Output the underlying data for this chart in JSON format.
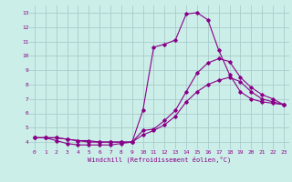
{
  "xlabel": "Windchill (Refroidissement éolien,°C)",
  "background_color": "#cceee8",
  "grid_color": "#aacccc",
  "line_color": "#880088",
  "xlim": [
    -0.5,
    23.5
  ],
  "ylim": [
    3.5,
    13.5
  ],
  "xticks": [
    0,
    1,
    2,
    3,
    4,
    5,
    6,
    7,
    8,
    9,
    10,
    11,
    12,
    13,
    14,
    15,
    16,
    17,
    18,
    19,
    20,
    21,
    22,
    23
  ],
  "yticks": [
    4,
    5,
    6,
    7,
    8,
    9,
    10,
    11,
    12,
    13
  ],
  "tick_fontsize": 4.5,
  "label_fontsize": 5.0,
  "series": [
    {
      "x": [
        0,
        1,
        2,
        3,
        4,
        5,
        6,
        7,
        8,
        9,
        10,
        11,
        12,
        13,
        14,
        15,
        16,
        17,
        18,
        19,
        20,
        21,
        22,
        23
      ],
      "y": [
        4.3,
        4.3,
        4.1,
        3.9,
        3.8,
        3.8,
        3.8,
        3.8,
        3.9,
        4.0,
        6.2,
        10.6,
        10.8,
        11.1,
        12.9,
        13.0,
        12.5,
        10.4,
        8.7,
        7.5,
        7.0,
        6.8,
        6.7,
        6.6
      ]
    },
    {
      "x": [
        0,
        1,
        2,
        3,
        4,
        5,
        6,
        7,
        8,
        9,
        10,
        11,
        12,
        13,
        14,
        15,
        16,
        17,
        18,
        19,
        20,
        21,
        22,
        23
      ],
      "y": [
        4.3,
        4.3,
        4.3,
        4.2,
        4.1,
        4.1,
        4.0,
        4.0,
        4.0,
        4.0,
        4.8,
        4.9,
        5.5,
        6.2,
        7.5,
        8.8,
        9.5,
        9.8,
        9.6,
        8.5,
        7.8,
        7.3,
        7.0,
        6.6
      ]
    },
    {
      "x": [
        0,
        1,
        2,
        3,
        4,
        5,
        6,
        7,
        8,
        9,
        10,
        11,
        12,
        13,
        14,
        15,
        16,
        17,
        18,
        19,
        20,
        21,
        22,
        23
      ],
      "y": [
        4.3,
        4.3,
        4.3,
        4.2,
        4.1,
        4.0,
        4.0,
        4.0,
        4.0,
        4.0,
        4.5,
        4.8,
        5.2,
        5.8,
        6.8,
        7.5,
        8.0,
        8.3,
        8.5,
        8.2,
        7.5,
        7.0,
        6.8,
        6.6
      ]
    }
  ]
}
